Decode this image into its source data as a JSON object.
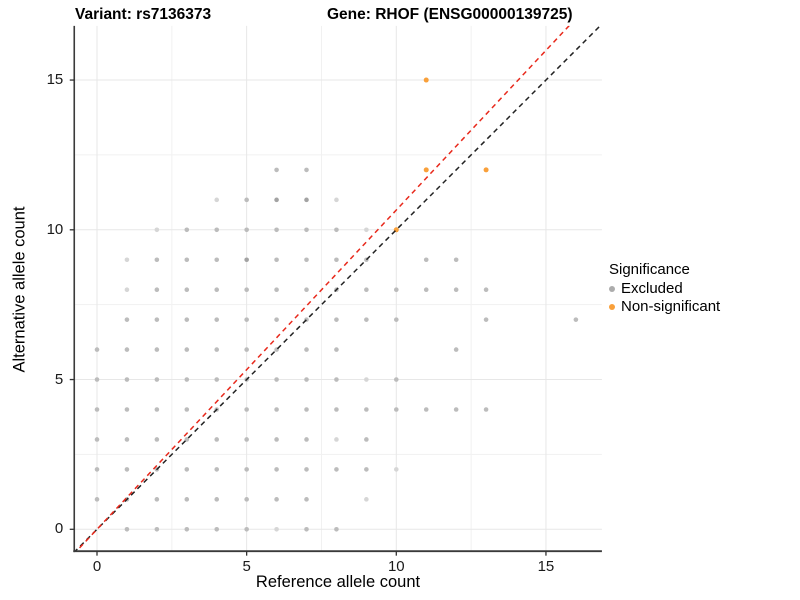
{
  "titles": {
    "variant": "Variant: rs7136373",
    "gene": "Gene: RHOF (ENSG00000139725)"
  },
  "chart_data": {
    "type": "scatter",
    "xlabel": "Reference allele count",
    "ylabel": "Alternative allele count",
    "xlim": [
      -0.76,
      16.87
    ],
    "ylim": [
      -0.73,
      16.81
    ],
    "x_ticks": [
      0,
      5,
      10,
      15
    ],
    "y_ticks": [
      0,
      5,
      10,
      15
    ],
    "x_tick_labels": [
      "0",
      "5",
      "10",
      "15"
    ],
    "y_tick_labels": [
      "0",
      "5",
      "10",
      "15"
    ],
    "minor_gridlines": [
      2.5,
      7.5,
      12.5
    ],
    "grid": "on",
    "colors": {
      "grid_major": "#e7e7e7",
      "grid_minor": "#f1f1f1",
      "axis_line": "#3a3a3a",
      "gray_light": "#d6d6d6",
      "gray_medium": "#bcbcbc",
      "gray_dark": "#a3a3a3",
      "orange": "#f9a03a",
      "red_line": "#e8291c",
      "black_line": "#222222"
    },
    "lines": [
      {
        "name": "identity-line",
        "slope": 1.0,
        "intercept": 0,
        "color_key": "black_line"
      },
      {
        "name": "ratio-line",
        "slope": 1.066,
        "intercept": 0,
        "color_key": "red_line"
      }
    ],
    "legend": {
      "title": "Significance",
      "position": "right",
      "items": [
        {
          "label": "Excluded",
          "color": "#acacac"
        },
        {
          "label": "Non-significant",
          "color": "#f9a03a"
        }
      ]
    },
    "series": [
      {
        "name": "Excluded",
        "points": [
          [
            1,
            0
          ],
          [
            2,
            0
          ],
          [
            3,
            0
          ],
          [
            4,
            0
          ],
          [
            5,
            0
          ],
          [
            6,
            0,
            "l"
          ],
          [
            7,
            0
          ],
          [
            8,
            0
          ],
          [
            0,
            1
          ],
          [
            1,
            1
          ],
          [
            2,
            1
          ],
          [
            3,
            1
          ],
          [
            4,
            1
          ],
          [
            5,
            1
          ],
          [
            6,
            1
          ],
          [
            7,
            1
          ],
          [
            9,
            1,
            "l"
          ],
          [
            0,
            2
          ],
          [
            1,
            2
          ],
          [
            2,
            2
          ],
          [
            3,
            2
          ],
          [
            4,
            2
          ],
          [
            5,
            2
          ],
          [
            6,
            2
          ],
          [
            7,
            2
          ],
          [
            8,
            2
          ],
          [
            9,
            2
          ],
          [
            10,
            2,
            "l"
          ],
          [
            0,
            3
          ],
          [
            1,
            3
          ],
          [
            2,
            3
          ],
          [
            3,
            3
          ],
          [
            4,
            3
          ],
          [
            5,
            3
          ],
          [
            6,
            3
          ],
          [
            7,
            3
          ],
          [
            8,
            3,
            "l"
          ],
          [
            9,
            3
          ],
          [
            0,
            4
          ],
          [
            1,
            4
          ],
          [
            2,
            4
          ],
          [
            3,
            4
          ],
          [
            4,
            4
          ],
          [
            5,
            4
          ],
          [
            6,
            4
          ],
          [
            7,
            4
          ],
          [
            8,
            4
          ],
          [
            9,
            4
          ],
          [
            10,
            4
          ],
          [
            11,
            4
          ],
          [
            12,
            4
          ],
          [
            13,
            4
          ],
          [
            0,
            5
          ],
          [
            1,
            5
          ],
          [
            2,
            5
          ],
          [
            3,
            5
          ],
          [
            4,
            5
          ],
          [
            5,
            5
          ],
          [
            6,
            5
          ],
          [
            7,
            5
          ],
          [
            8,
            5
          ],
          [
            9,
            5,
            "l"
          ],
          [
            10,
            5
          ],
          [
            0,
            6
          ],
          [
            1,
            6
          ],
          [
            2,
            6
          ],
          [
            3,
            6
          ],
          [
            4,
            6
          ],
          [
            5,
            6
          ],
          [
            6,
            6
          ],
          [
            7,
            6
          ],
          [
            8,
            6
          ],
          [
            12,
            6
          ],
          [
            1,
            7
          ],
          [
            2,
            7
          ],
          [
            3,
            7
          ],
          [
            4,
            7
          ],
          [
            5,
            7
          ],
          [
            6,
            7
          ],
          [
            7,
            7
          ],
          [
            8,
            7
          ],
          [
            9,
            7
          ],
          [
            10,
            7
          ],
          [
            13,
            7
          ],
          [
            16,
            7
          ],
          [
            1,
            8,
            "l"
          ],
          [
            2,
            8
          ],
          [
            3,
            8
          ],
          [
            4,
            8
          ],
          [
            5,
            8
          ],
          [
            6,
            8
          ],
          [
            7,
            8
          ],
          [
            8,
            8
          ],
          [
            9,
            8
          ],
          [
            10,
            8
          ],
          [
            11,
            8
          ],
          [
            12,
            8
          ],
          [
            13,
            8
          ],
          [
            1,
            9,
            "l"
          ],
          [
            2,
            9
          ],
          [
            3,
            9
          ],
          [
            4,
            9
          ],
          [
            5,
            9,
            "d"
          ],
          [
            6,
            9
          ],
          [
            7,
            9
          ],
          [
            8,
            9
          ],
          [
            9,
            9
          ],
          [
            11,
            9
          ],
          [
            12,
            9
          ],
          [
            2,
            10,
            "l"
          ],
          [
            3,
            10
          ],
          [
            4,
            10
          ],
          [
            5,
            10
          ],
          [
            6,
            10
          ],
          [
            7,
            10
          ],
          [
            8,
            10
          ],
          [
            9,
            10,
            "l"
          ],
          [
            4,
            11,
            "l"
          ],
          [
            5,
            11
          ],
          [
            6,
            11,
            "d"
          ],
          [
            7,
            11,
            "d"
          ],
          [
            8,
            11,
            "l"
          ],
          [
            6,
            12
          ],
          [
            7,
            12
          ]
        ]
      },
      {
        "name": "Non-significant",
        "points": [
          [
            10,
            10
          ],
          [
            11,
            12
          ],
          [
            13,
            12
          ],
          [
            11,
            15
          ]
        ]
      }
    ]
  }
}
